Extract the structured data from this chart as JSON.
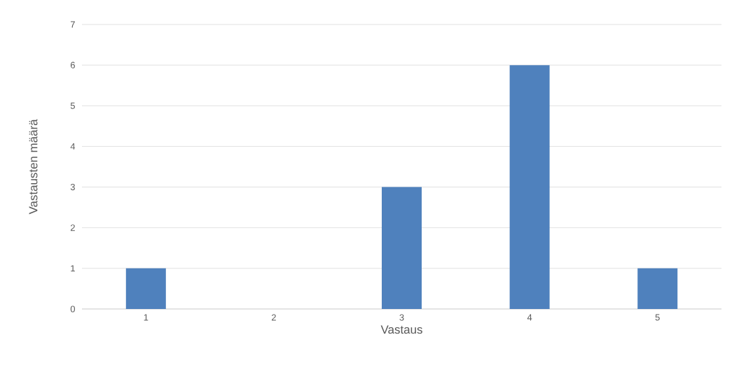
{
  "chart_data": {
    "type": "bar",
    "xlabel": "Vastaus",
    "ylabel": "Vastausten määrä",
    "categories": [
      "1",
      "2",
      "3",
      "4",
      "5"
    ],
    "values": [
      1,
      0,
      3,
      6,
      1
    ],
    "color": "#4f81bd",
    "ylim": [
      0,
      7
    ],
    "yticks": [
      0,
      1,
      2,
      3,
      4,
      5,
      6,
      7
    ],
    "grid": "y"
  }
}
